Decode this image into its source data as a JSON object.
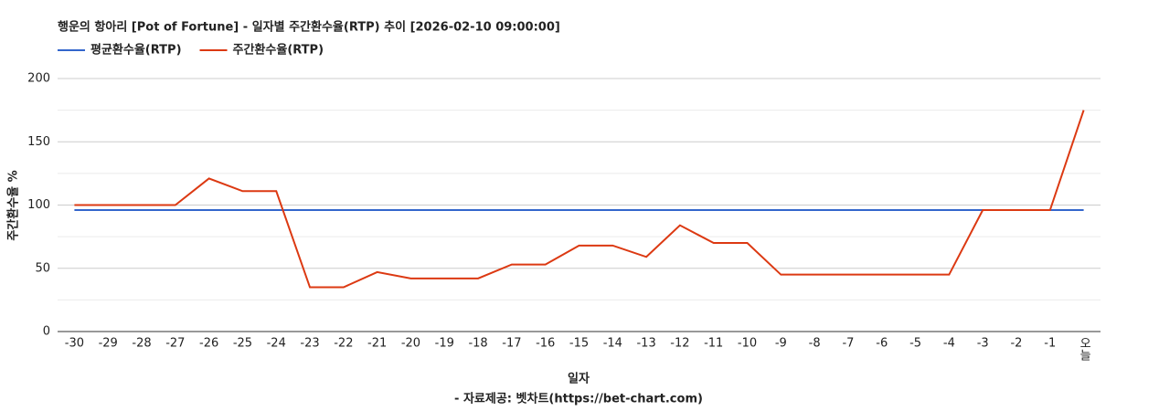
{
  "chart_data": {
    "type": "line",
    "title": "행운의 항아리 [Pot of Fortune] - 일자별 주간환수율(RTP) 추이 [2026-02-10 09:00:00]",
    "x_label": "일자",
    "y_label": "주간환수율 %",
    "source": "- 자료제공: 벳차트(https://bet-chart.com)",
    "categories": [
      "-30",
      "-29",
      "-28",
      "-27",
      "-26",
      "-25",
      "-24",
      "-23",
      "-22",
      "-21",
      "-20",
      "-19",
      "-18",
      "-17",
      "-16",
      "-15",
      "-14",
      "-13",
      "-12",
      "-11",
      "-10",
      "-9",
      "-8",
      "-7",
      "-6",
      "-5",
      "-4",
      "-3",
      "-2",
      "-1",
      "오늘"
    ],
    "series": [
      {
        "name": "평균환수율(RTP)",
        "color": "#3366cc",
        "values": [
          96,
          96,
          96,
          96,
          96,
          96,
          96,
          96,
          96,
          96,
          96,
          96,
          96,
          96,
          96,
          96,
          96,
          96,
          96,
          96,
          96,
          96,
          96,
          96,
          96,
          96,
          96,
          96,
          96,
          96,
          96
        ]
      },
      {
        "name": "주간환수율(RTP)",
        "color": "#dc3912",
        "values": [
          100,
          100,
          100,
          100,
          121,
          111,
          111,
          35,
          35,
          47,
          42,
          42,
          42,
          53,
          53,
          68,
          68,
          59,
          84,
          70,
          70,
          45,
          45,
          45,
          45,
          45,
          45,
          96,
          96,
          96,
          175
        ]
      }
    ],
    "ylim": [
      0,
      200
    ],
    "yticks": [
      0,
      50,
      100,
      150,
      200
    ],
    "minor_yticks": [
      25,
      75,
      125,
      175
    ],
    "grid": true,
    "legend": "top-left"
  }
}
